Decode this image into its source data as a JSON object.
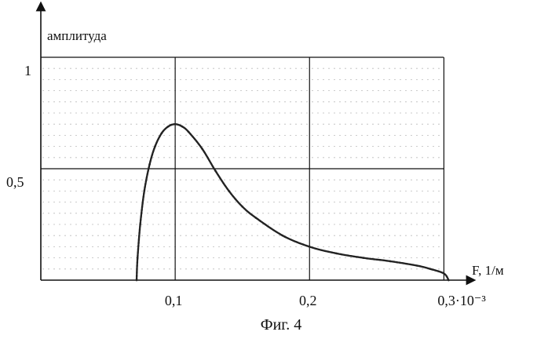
{
  "figure_caption": "Фиг. 4",
  "chart_data": {
    "type": "line",
    "ylabel": "амплитуда",
    "xlabel": "F, 1/м",
    "x_tick_values": [
      0.1,
      0.2,
      0.3
    ],
    "x_tick_labels": [
      "0,1",
      "0,2",
      "0,3·10⁻³"
    ],
    "y_tick_values": [
      0.5,
      1
    ],
    "y_tick_labels": [
      "0,5",
      "1"
    ],
    "xlim": [
      0,
      0.33
    ],
    "ylim": [
      0,
      1
    ],
    "grid": true,
    "series": [
      {
        "x": [
          0.0713,
          0.072,
          0.074,
          0.077,
          0.081,
          0.085,
          0.09,
          0.095,
          0.1,
          0.105,
          0.11,
          0.12,
          0.13,
          0.14,
          0.15,
          0.16,
          0.18,
          0.2,
          0.22,
          0.24,
          0.26,
          0.28,
          0.29,
          0.3,
          0.3035
        ],
        "y": [
          0.0,
          0.1,
          0.25,
          0.4,
          0.52,
          0.6,
          0.66,
          0.69,
          0.7,
          0.69,
          0.665,
          0.59,
          0.49,
          0.4,
          0.33,
          0.28,
          0.2,
          0.15,
          0.12,
          0.1,
          0.085,
          0.065,
          0.05,
          0.03,
          0.0
        ]
      }
    ]
  }
}
